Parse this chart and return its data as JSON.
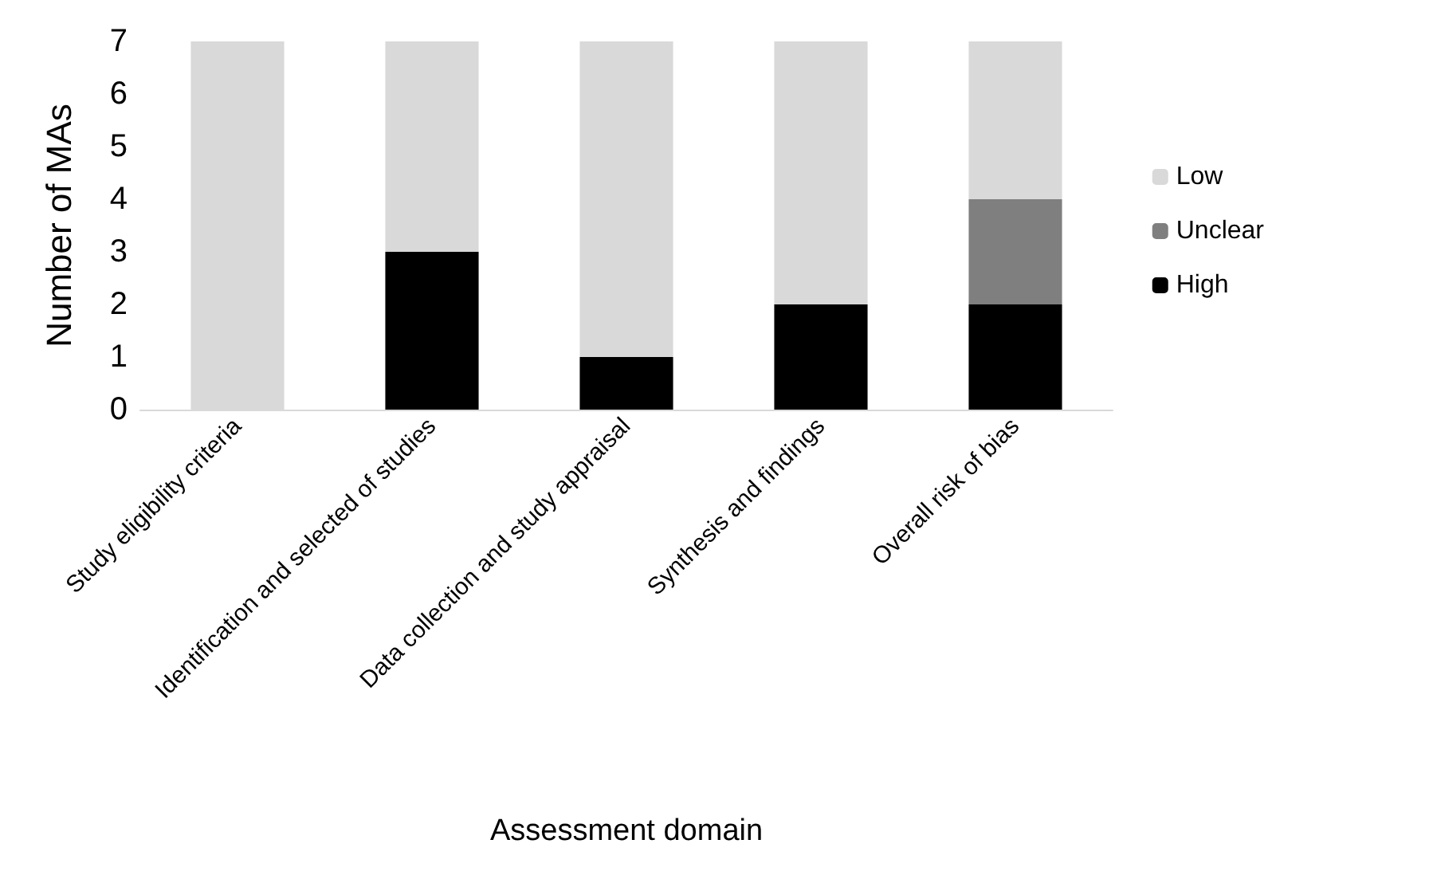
{
  "chart_data": {
    "type": "bar",
    "stacked": true,
    "xlabel": "Assessment domain",
    "ylabel": "Number of MAs",
    "categories": [
      "Study eligibility criteria",
      "Identification and selected of studies",
      "Data collection and study appraisal",
      "Synthesis and findings",
      "Overall risk of bias"
    ],
    "series": [
      {
        "name": "High",
        "color": "#000000",
        "values": [
          0,
          3,
          1,
          2,
          2
        ]
      },
      {
        "name": "Unclear",
        "color": "#7f7f7f",
        "values": [
          0,
          0,
          0,
          0,
          2
        ]
      },
      {
        "name": "Low",
        "color": "#d9d9d9",
        "values": [
          7,
          4,
          6,
          5,
          3
        ]
      }
    ],
    "ylim": [
      0,
      7
    ],
    "yticks": [
      0,
      1,
      2,
      3,
      4,
      5,
      6,
      7
    ],
    "grid": false,
    "legend": "right"
  }
}
